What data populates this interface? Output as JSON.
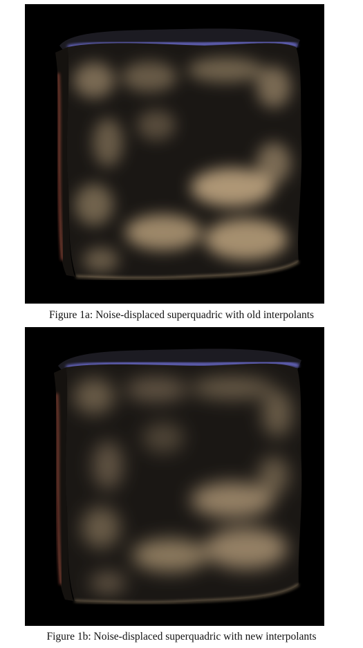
{
  "figures": [
    {
      "label": "Figure 1a",
      "caption": "Figure 1a: Noise-displaced superquadric with old interpolants",
      "subject": "noise-displaced superquadric render"
    },
    {
      "label": "Figure 1b",
      "caption": "Figure 1b: Noise-displaced superquadric with new interpolants",
      "subject": "noise-displaced superquadric render"
    }
  ],
  "colors": {
    "background": "#000000",
    "surface_dark": "#1a1714",
    "surface_light": "#c8ad86",
    "rim_blue": "#6f6fd6",
    "rim_red": "#9a4a3a",
    "text": "#111111"
  }
}
